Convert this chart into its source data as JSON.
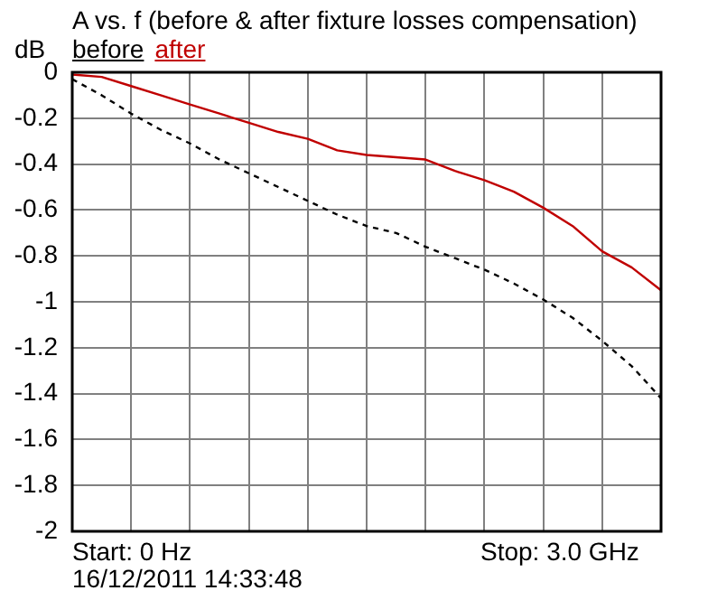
{
  "chart_data": {
    "type": "line",
    "title": "A vs. f (before & after fixture losses compensation)",
    "ylabel": "dB",
    "categories": [
      null,
      null,
      null,
      null,
      null,
      null,
      null,
      null,
      null,
      null,
      null,
      null,
      null,
      null,
      null,
      null,
      null,
      null,
      null,
      null,
      null
    ],
    "series": [
      {
        "name": "before",
        "color": "#000000",
        "line_style": "dashed",
        "values": [
          -0.03,
          -0.1,
          -0.18,
          -0.25,
          -0.31,
          -0.38,
          -0.44,
          -0.5,
          -0.56,
          -0.62,
          -0.67,
          -0.7,
          -0.76,
          -0.81,
          -0.86,
          -0.92,
          -0.99,
          -1.07,
          -1.17,
          -1.28,
          -1.42
        ]
      },
      {
        "name": "after",
        "color": "#c00000",
        "line_style": "solid",
        "values": [
          -0.01,
          -0.02,
          -0.06,
          -0.1,
          -0.14,
          -0.18,
          -0.22,
          -0.26,
          -0.29,
          -0.34,
          -0.36,
          -0.37,
          -0.38,
          -0.43,
          -0.47,
          -0.52,
          -0.59,
          -0.67,
          -0.78,
          -0.85,
          -0.95
        ]
      }
    ],
    "ylim": [
      -2,
      0
    ],
    "yticks": [
      0,
      -0.2,
      -0.4,
      -0.6,
      -0.8,
      -1,
      -1.2,
      -1.4,
      -1.6,
      -1.8,
      -2
    ],
    "tick_labels": "y",
    "grid": true,
    "marker": "none",
    "annotations": [
      "Start: 0 Hz",
      "Stop: 3.0 GHz",
      "16/12/2011 14:33:48"
    ]
  }
}
